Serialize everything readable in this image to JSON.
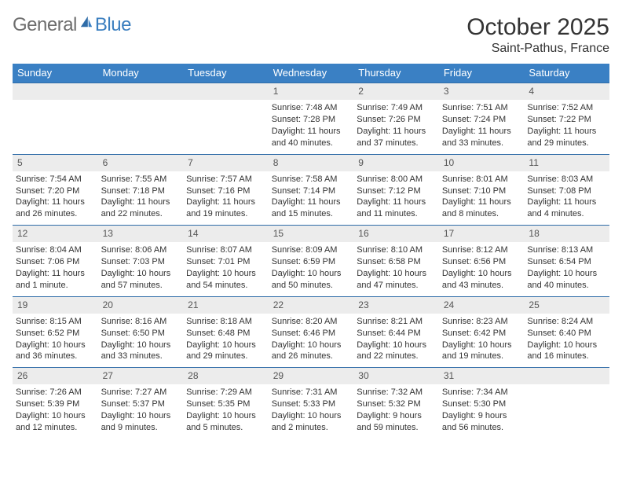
{
  "logo": {
    "part1": "General",
    "part2": "Blue"
  },
  "title": "October 2025",
  "location": "Saint-Pathus, France",
  "colors": {
    "header_bg": "#3a80c4",
    "header_text": "#ffffff",
    "daynum_bg": "#ececec",
    "daynum_border": "#2f6ca8",
    "logo_gray": "#6d6d6d",
    "logo_blue": "#3a7ebf",
    "body_text": "#333333",
    "page_bg": "#ffffff"
  },
  "fonts": {
    "title_size": 30,
    "location_size": 16,
    "dayhead_size": 13,
    "daynum_size": 12,
    "body_size": 11
  },
  "days": [
    "Sunday",
    "Monday",
    "Tuesday",
    "Wednesday",
    "Thursday",
    "Friday",
    "Saturday"
  ],
  "weeks": [
    [
      null,
      null,
      null,
      {
        "n": "1",
        "sunrise": "Sunrise: 7:48 AM",
        "sunset": "Sunset: 7:28 PM",
        "daylight": "Daylight: 11 hours and 40 minutes."
      },
      {
        "n": "2",
        "sunrise": "Sunrise: 7:49 AM",
        "sunset": "Sunset: 7:26 PM",
        "daylight": "Daylight: 11 hours and 37 minutes."
      },
      {
        "n": "3",
        "sunrise": "Sunrise: 7:51 AM",
        "sunset": "Sunset: 7:24 PM",
        "daylight": "Daylight: 11 hours and 33 minutes."
      },
      {
        "n": "4",
        "sunrise": "Sunrise: 7:52 AM",
        "sunset": "Sunset: 7:22 PM",
        "daylight": "Daylight: 11 hours and 29 minutes."
      }
    ],
    [
      {
        "n": "5",
        "sunrise": "Sunrise: 7:54 AM",
        "sunset": "Sunset: 7:20 PM",
        "daylight": "Daylight: 11 hours and 26 minutes."
      },
      {
        "n": "6",
        "sunrise": "Sunrise: 7:55 AM",
        "sunset": "Sunset: 7:18 PM",
        "daylight": "Daylight: 11 hours and 22 minutes."
      },
      {
        "n": "7",
        "sunrise": "Sunrise: 7:57 AM",
        "sunset": "Sunset: 7:16 PM",
        "daylight": "Daylight: 11 hours and 19 minutes."
      },
      {
        "n": "8",
        "sunrise": "Sunrise: 7:58 AM",
        "sunset": "Sunset: 7:14 PM",
        "daylight": "Daylight: 11 hours and 15 minutes."
      },
      {
        "n": "9",
        "sunrise": "Sunrise: 8:00 AM",
        "sunset": "Sunset: 7:12 PM",
        "daylight": "Daylight: 11 hours and 11 minutes."
      },
      {
        "n": "10",
        "sunrise": "Sunrise: 8:01 AM",
        "sunset": "Sunset: 7:10 PM",
        "daylight": "Daylight: 11 hours and 8 minutes."
      },
      {
        "n": "11",
        "sunrise": "Sunrise: 8:03 AM",
        "sunset": "Sunset: 7:08 PM",
        "daylight": "Daylight: 11 hours and 4 minutes."
      }
    ],
    [
      {
        "n": "12",
        "sunrise": "Sunrise: 8:04 AM",
        "sunset": "Sunset: 7:06 PM",
        "daylight": "Daylight: 11 hours and 1 minute."
      },
      {
        "n": "13",
        "sunrise": "Sunrise: 8:06 AM",
        "sunset": "Sunset: 7:03 PM",
        "daylight": "Daylight: 10 hours and 57 minutes."
      },
      {
        "n": "14",
        "sunrise": "Sunrise: 8:07 AM",
        "sunset": "Sunset: 7:01 PM",
        "daylight": "Daylight: 10 hours and 54 minutes."
      },
      {
        "n": "15",
        "sunrise": "Sunrise: 8:09 AM",
        "sunset": "Sunset: 6:59 PM",
        "daylight": "Daylight: 10 hours and 50 minutes."
      },
      {
        "n": "16",
        "sunrise": "Sunrise: 8:10 AM",
        "sunset": "Sunset: 6:58 PM",
        "daylight": "Daylight: 10 hours and 47 minutes."
      },
      {
        "n": "17",
        "sunrise": "Sunrise: 8:12 AM",
        "sunset": "Sunset: 6:56 PM",
        "daylight": "Daylight: 10 hours and 43 minutes."
      },
      {
        "n": "18",
        "sunrise": "Sunrise: 8:13 AM",
        "sunset": "Sunset: 6:54 PM",
        "daylight": "Daylight: 10 hours and 40 minutes."
      }
    ],
    [
      {
        "n": "19",
        "sunrise": "Sunrise: 8:15 AM",
        "sunset": "Sunset: 6:52 PM",
        "daylight": "Daylight: 10 hours and 36 minutes."
      },
      {
        "n": "20",
        "sunrise": "Sunrise: 8:16 AM",
        "sunset": "Sunset: 6:50 PM",
        "daylight": "Daylight: 10 hours and 33 minutes."
      },
      {
        "n": "21",
        "sunrise": "Sunrise: 8:18 AM",
        "sunset": "Sunset: 6:48 PM",
        "daylight": "Daylight: 10 hours and 29 minutes."
      },
      {
        "n": "22",
        "sunrise": "Sunrise: 8:20 AM",
        "sunset": "Sunset: 6:46 PM",
        "daylight": "Daylight: 10 hours and 26 minutes."
      },
      {
        "n": "23",
        "sunrise": "Sunrise: 8:21 AM",
        "sunset": "Sunset: 6:44 PM",
        "daylight": "Daylight: 10 hours and 22 minutes."
      },
      {
        "n": "24",
        "sunrise": "Sunrise: 8:23 AM",
        "sunset": "Sunset: 6:42 PM",
        "daylight": "Daylight: 10 hours and 19 minutes."
      },
      {
        "n": "25",
        "sunrise": "Sunrise: 8:24 AM",
        "sunset": "Sunset: 6:40 PM",
        "daylight": "Daylight: 10 hours and 16 minutes."
      }
    ],
    [
      {
        "n": "26",
        "sunrise": "Sunrise: 7:26 AM",
        "sunset": "Sunset: 5:39 PM",
        "daylight": "Daylight: 10 hours and 12 minutes."
      },
      {
        "n": "27",
        "sunrise": "Sunrise: 7:27 AM",
        "sunset": "Sunset: 5:37 PM",
        "daylight": "Daylight: 10 hours and 9 minutes."
      },
      {
        "n": "28",
        "sunrise": "Sunrise: 7:29 AM",
        "sunset": "Sunset: 5:35 PM",
        "daylight": "Daylight: 10 hours and 5 minutes."
      },
      {
        "n": "29",
        "sunrise": "Sunrise: 7:31 AM",
        "sunset": "Sunset: 5:33 PM",
        "daylight": "Daylight: 10 hours and 2 minutes."
      },
      {
        "n": "30",
        "sunrise": "Sunrise: 7:32 AM",
        "sunset": "Sunset: 5:32 PM",
        "daylight": "Daylight: 9 hours and 59 minutes."
      },
      {
        "n": "31",
        "sunrise": "Sunrise: 7:34 AM",
        "sunset": "Sunset: 5:30 PM",
        "daylight": "Daylight: 9 hours and 56 minutes."
      },
      null
    ]
  ]
}
